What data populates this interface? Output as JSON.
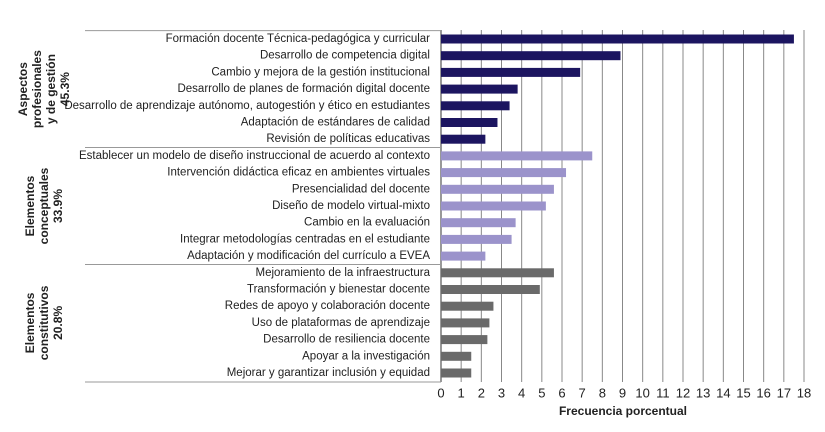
{
  "chart_data": {
    "type": "bar",
    "orientation": "horizontal",
    "groups": [
      {
        "label": [
          "Aspectos",
          "profesionales",
          "y de gestión",
          "45.3%"
        ],
        "color": "#1c1560",
        "categories": [
          "Formación docente Técnica-pedagógica y curricular",
          "Desarrollo de competencia digital",
          "Cambio y mejora de la gestión institucional",
          "Desarrollo de planes de formación digital docente",
          "Desarrollo de aprendizaje autónomo, autogestión y ético en estudiantes",
          "Adaptación de estándares de calidad",
          "Revisión de políticas educativas"
        ],
        "values": [
          17.5,
          8.9,
          6.9,
          3.8,
          3.4,
          2.8,
          2.2
        ]
      },
      {
        "label": [
          "Elementos",
          "conceptuales",
          "33.9%"
        ],
        "color": "#9b93cb",
        "categories": [
          "Establecer un modelo de diseño instruccional de acuerdo al contexto",
          "Intervención didáctica eficaz en ambientes virtuales",
          "Presencialidad del docente",
          "Diseño de modelo virtual-mixto",
          "Cambio en la evaluación",
          "Integrar metodologías centradas en el estudiante",
          "Adaptación y modificación del currículo a EVEA"
        ],
        "values": [
          7.5,
          6.2,
          5.6,
          5.2,
          3.7,
          3.5,
          2.2
        ]
      },
      {
        "label": [
          "Elementos",
          "constitutivos",
          "20.8%"
        ],
        "color": "#6a6a6a",
        "categories": [
          "Mejoramiento de la infraestructura",
          "Transformación y bienestar docente",
          "Redes de apoyo y colaboración docente",
          "Uso de plataformas de aprendizaje",
          "Desarrollo de resiliencia docente",
          "Apoyar a la investigación",
          "Mejorar y garantizar inclusión y equidad"
        ],
        "values": [
          5.6,
          4.9,
          2.6,
          2.4,
          2.3,
          1.5,
          1.5
        ]
      }
    ],
    "xlabel": "Frecuencia porcentual",
    "xlim": [
      0,
      18
    ],
    "xticks": [
      0,
      1,
      2,
      3,
      4,
      5,
      6,
      7,
      8,
      9,
      10,
      11,
      12,
      13,
      14,
      15,
      16,
      17,
      18
    ],
    "grid": true
  }
}
